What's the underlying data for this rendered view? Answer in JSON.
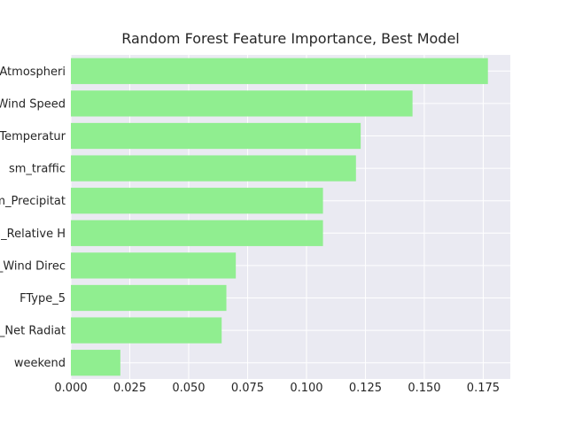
{
  "chart_data": {
    "type": "bar",
    "orientation": "horizontal",
    "title": "Random Forest Feature Importance, Best Model",
    "xlabel": "",
    "ylabel": "",
    "categories": [
      "_Atmospheri",
      "Wind Speed",
      "_Temperatur",
      "sm_traffic",
      "m_Precipitat",
      "n_Relative H",
      "_Wind Direc",
      "FType_5",
      "_Net Radiat",
      "weekend"
    ],
    "values": [
      0.177,
      0.145,
      0.123,
      0.121,
      0.107,
      0.107,
      0.07,
      0.066,
      0.064,
      0.021
    ],
    "xlim": [
      0,
      0.1865
    ],
    "xticks": [
      0.0,
      0.025,
      0.05,
      0.075,
      0.1,
      0.125,
      0.15,
      0.175
    ],
    "xtick_labels": [
      "0.000",
      "0.025",
      "0.050",
      "0.075",
      "0.100",
      "0.125",
      "0.150",
      "0.175"
    ],
    "grid": true,
    "colors": {
      "bar": "#90ee90",
      "plot_background": "#eaeaf2",
      "grid": "#ffffff",
      "text": "#262626"
    }
  }
}
